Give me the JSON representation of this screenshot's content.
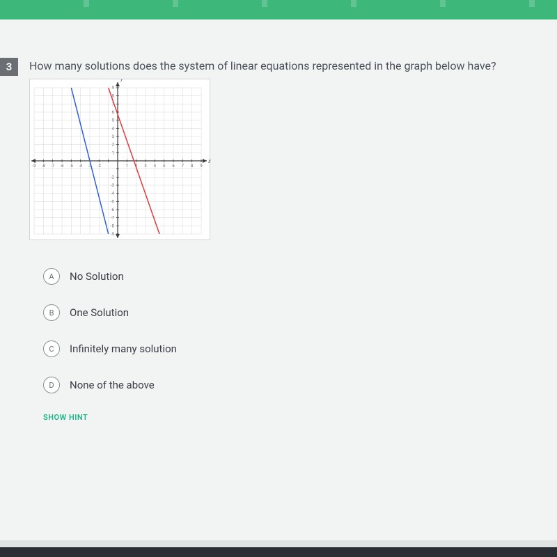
{
  "question_number": "3",
  "question_text": "How many solutions does the system of linear equations represented in the graph below have?",
  "graph": {
    "type": "line",
    "xlim": [
      -9,
      9
    ],
    "ylim": [
      -9,
      9
    ],
    "xtick_step": 1,
    "ytick_step": 1,
    "x_axis_label": "x",
    "y_axis_label": "y",
    "background_color": "#ffffff",
    "grid_color": "#d4d6d8",
    "axis_color": "#3a3a3a",
    "tick_label_color": "#6b6f73",
    "tick_label_fontsize": 6,
    "xtick_labels_neg": [
      "-9",
      "-8",
      "-7",
      "-6",
      "-5",
      "-4",
      "-3",
      "-2"
    ],
    "xtick_labels_pos": [
      "1",
      "2",
      "3",
      "4",
      "5",
      "6",
      "7",
      "8",
      "9"
    ],
    "ytick_labels_pos": [
      "1",
      "2",
      "3",
      "4",
      "5",
      "6",
      "7",
      "8",
      "9"
    ],
    "ytick_labels_neg": [
      "-2",
      "-3",
      "-4",
      "-5",
      "-6",
      "-7",
      "-8",
      "-9"
    ],
    "lines": [
      {
        "color": "#2b5fd9",
        "width": 1.5,
        "points": [
          [
            -5,
            9
          ],
          [
            -1,
            -9
          ]
        ]
      },
      {
        "color": "#e23b3b",
        "width": 1.5,
        "points": [
          [
            -1,
            9
          ],
          [
            4.5,
            -9
          ]
        ]
      }
    ]
  },
  "options": [
    {
      "letter": "A",
      "label": "No Solution"
    },
    {
      "letter": "B",
      "label": "One Solution"
    },
    {
      "letter": "C",
      "label": "Infinitely many solution"
    },
    {
      "letter": "D",
      "label": "None of the above"
    }
  ],
  "hint_label": "SHOW HINT"
}
